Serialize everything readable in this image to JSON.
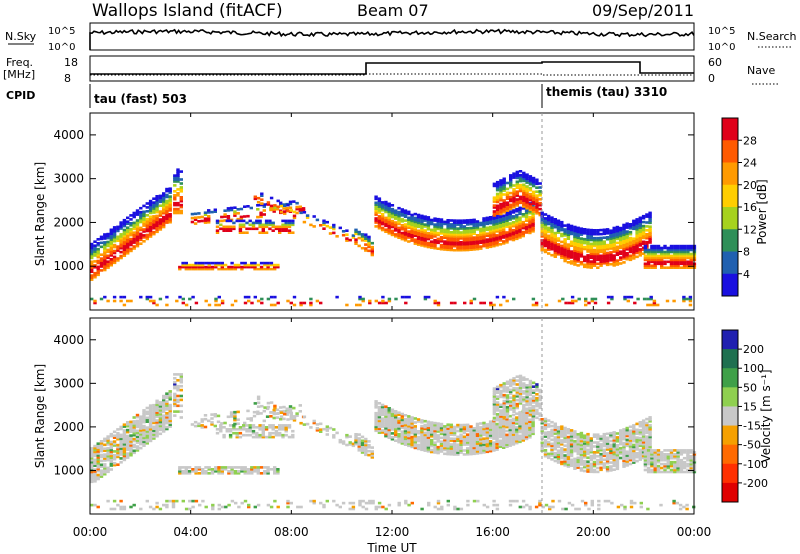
{
  "header": {
    "title": "Wallops Island (fitACF)",
    "beam": "Beam 07",
    "date": "09/Sep/2011"
  },
  "status_panels": {
    "nsky_label": "N.Sky",
    "nsky_ticks": [
      "10^5",
      "10^0"
    ],
    "nsearch_label": "N.Search",
    "nsearch_ticks": [
      "10^5",
      "10^0"
    ],
    "freq_label": "Freq.",
    "freq_unit": "[MHz]",
    "freq_ticks": [
      "18",
      "8"
    ],
    "nave_label": "Nave",
    "nave_ticks": [
      "60",
      "0"
    ],
    "cpid_label": "CPID",
    "cpid_segments": [
      {
        "label": "tau (fast) 503",
        "start_hour": 0
      },
      {
        "label": "themis (tau) 3310",
        "start_hour": 18
      }
    ]
  },
  "chart_data": [
    {
      "type": "heatmap",
      "ylabel": "Slant Range [km]",
      "yticks": [
        1000,
        2000,
        3000,
        4000
      ],
      "ylim": [
        0,
        4500
      ],
      "colorbar_label": "Power [dB]",
      "colorbar_ticks": [
        28,
        24,
        20,
        16,
        12,
        8,
        4
      ],
      "colorbar_colors": [
        "#e0001a",
        "#ff5a00",
        "#ff9a00",
        "#ffce00",
        "#a6d21e",
        "#2f8f58",
        "#2060b0",
        "#1a10e0"
      ]
    },
    {
      "type": "heatmap",
      "ylabel": "Slant Range [km]",
      "yticks": [
        1000,
        2000,
        3000,
        4000
      ],
      "ylim": [
        0,
        4500
      ],
      "colorbar_label": "Velocity [m s⁻¹]",
      "colorbar_ticks": [
        "200",
        "100",
        "50",
        "15",
        "-15",
        "-50",
        "-100",
        "-200"
      ],
      "colorbar_colors": [
        "#2020b0",
        "#1f7050",
        "#3fa048",
        "#8fd050",
        "#c8c8c8",
        "#f5a000",
        "#ff6a00",
        "#ff3000",
        "#e00000"
      ]
    }
  ],
  "time_axis": {
    "label": "Time UT",
    "ticks": [
      "00:00",
      "04:00",
      "08:00",
      "12:00",
      "16:00",
      "20:00",
      "00:00"
    ],
    "range_hours": [
      0,
      24
    ]
  }
}
